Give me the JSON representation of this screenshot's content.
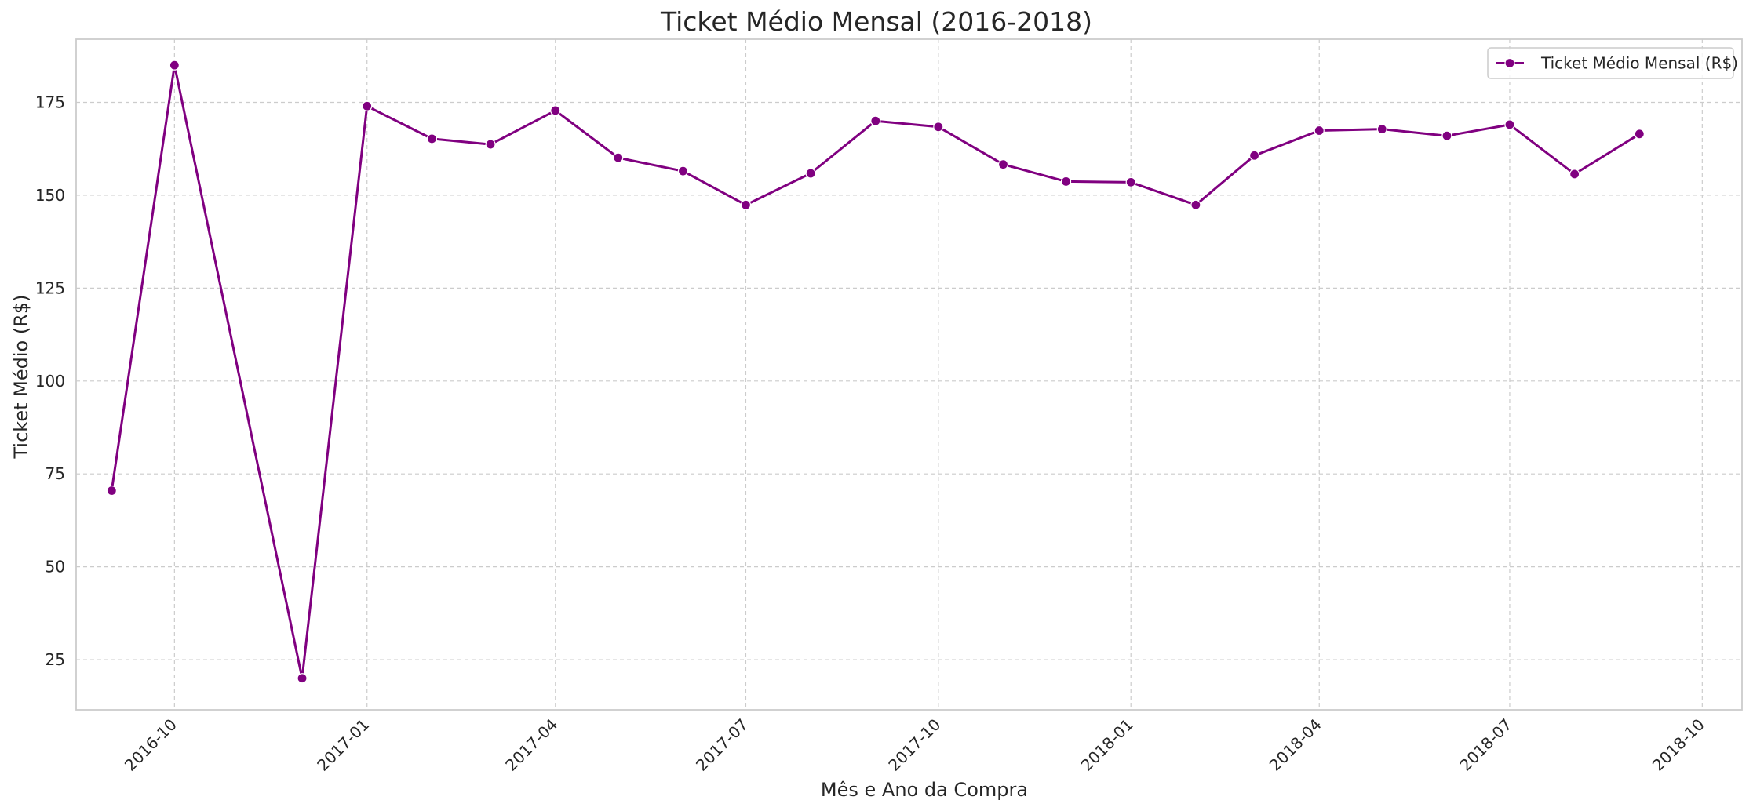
{
  "chart_data": {
    "type": "line",
    "title": "Ticket Médio Mensal (2016-2018)",
    "xlabel": "Mês e Ano da Compra",
    "ylabel": "Ticket Médio (R$)",
    "x_tick_labels": [
      "2016-10",
      "2017-01",
      "2017-04",
      "2017-07",
      "2017-10",
      "2018-01",
      "2018-04",
      "2018-07",
      "2018-10"
    ],
    "y_ticks": [
      25,
      50,
      75,
      100,
      125,
      150,
      175
    ],
    "ylim": [
      11.5,
      192
    ],
    "xlim": [
      "2016-08-15",
      "2018-10-20"
    ],
    "grid": true,
    "legend_position": "top-right",
    "series": [
      {
        "name": "Ticket Médio Mensal (R$)",
        "color": "#800080",
        "marker": "circle",
        "points": [
          {
            "x": "2016-09-01",
            "y": 70.5
          },
          {
            "x": "2016-10-01",
            "y": 185.0
          },
          {
            "x": "2016-12-01",
            "y": 20.0
          },
          {
            "x": "2017-01-01",
            "y": 174.0
          },
          {
            "x": "2017-02-01",
            "y": 165.2
          },
          {
            "x": "2017-03-01",
            "y": 163.7
          },
          {
            "x": "2017-04-01",
            "y": 172.8
          },
          {
            "x": "2017-05-01",
            "y": 160.1
          },
          {
            "x": "2017-06-01",
            "y": 156.5
          },
          {
            "x": "2017-07-01",
            "y": 147.4
          },
          {
            "x": "2017-08-01",
            "y": 155.9
          },
          {
            "x": "2017-09-01",
            "y": 170.0
          },
          {
            "x": "2017-10-01",
            "y": 168.4
          },
          {
            "x": "2017-11-01",
            "y": 158.3
          },
          {
            "x": "2017-12-01",
            "y": 153.7
          },
          {
            "x": "2018-01-01",
            "y": 153.5
          },
          {
            "x": "2018-02-01",
            "y": 147.4
          },
          {
            "x": "2018-03-01",
            "y": 160.7
          },
          {
            "x": "2018-04-01",
            "y": 167.4
          },
          {
            "x": "2018-05-01",
            "y": 167.8
          },
          {
            "x": "2018-06-01",
            "y": 166.0
          },
          {
            "x": "2018-07-01",
            "y": 169.0
          },
          {
            "x": "2018-08-01",
            "y": 155.7
          },
          {
            "x": "2018-09-01",
            "y": 166.5
          }
        ]
      }
    ]
  }
}
